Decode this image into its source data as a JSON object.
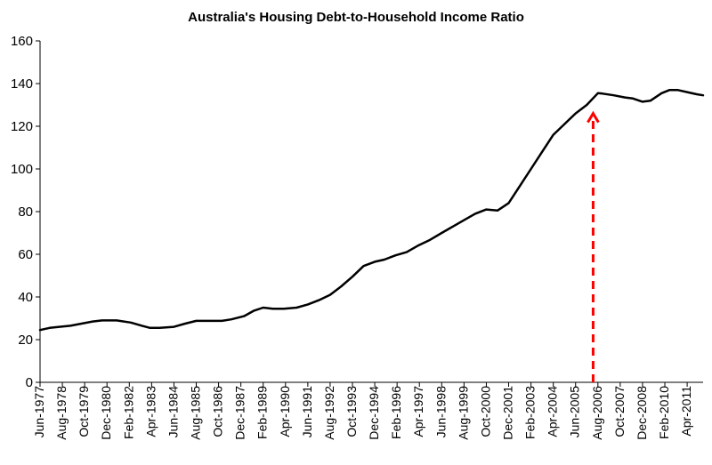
{
  "chart_data": {
    "type": "line",
    "title": "Australia's Housing Debt-to-Household Income Ratio",
    "xlabel": "",
    "ylabel": "",
    "ylim": [
      0,
      160
    ],
    "yticks": [
      0,
      20,
      40,
      60,
      80,
      100,
      120,
      140,
      160
    ],
    "xlim": [
      "1977-06",
      "2012-02"
    ],
    "xtick_labels": [
      "Jun-1977",
      "Aug-1978",
      "Oct-1979",
      "Dec-1980",
      "Feb-1982",
      "Apr-1983",
      "Jun-1984",
      "Aug-1985",
      "Oct-1986",
      "Dec-1987",
      "Feb-1989",
      "Apr-1990",
      "Jun-1991",
      "Aug-1992",
      "Oct-1993",
      "Dec-1994",
      "Feb-1996",
      "Apr-1997",
      "Jun-1998",
      "Aug-1999",
      "Oct-2000",
      "Dec-2001",
      "Feb-2003",
      "Apr-2004",
      "Jun-2005",
      "Aug-2006",
      "Oct-2007",
      "Dec-2008",
      "Feb-2010",
      "Apr-2011"
    ],
    "grid": false,
    "legend": "none",
    "line_color": "#000000",
    "series": [
      {
        "x": [
          "1977-06",
          "1977-12",
          "1978-06",
          "1979-01",
          "1979-08",
          "1980-03",
          "1980-09",
          "1981-06",
          "1982-03",
          "1982-10",
          "1983-03",
          "1983-09",
          "1984-06",
          "1985-01",
          "1985-08",
          "1986-03",
          "1986-12",
          "1987-06",
          "1988-02",
          "1988-08",
          "1989-02",
          "1989-08",
          "1990-03",
          "1990-11",
          "1991-06",
          "1992-01",
          "1992-08",
          "1993-03",
          "1993-10",
          "1994-05",
          "1994-12",
          "1995-06",
          "1996-01",
          "1996-08",
          "1997-03",
          "1997-10",
          "1998-06",
          "1999-01",
          "1999-08",
          "2000-03",
          "2000-10",
          "2001-05",
          "2001-12",
          "2002-07",
          "2003-02",
          "2003-09",
          "2004-04",
          "2004-11",
          "2005-06",
          "2006-01",
          "2006-08",
          "2006-11",
          "2007-06",
          "2008-01",
          "2008-06",
          "2008-12",
          "2009-05",
          "2009-12",
          "2010-05",
          "2010-10",
          "2011-04",
          "2011-10",
          "2012-02"
        ],
        "values": [
          24.5,
          25.5,
          26,
          26.5,
          27.5,
          28.5,
          29,
          29,
          28,
          26.5,
          25.5,
          25.5,
          26,
          27.5,
          28.8,
          28.8,
          28.8,
          29.5,
          31,
          33.5,
          35,
          34.5,
          34.5,
          35,
          36.5,
          38.5,
          41,
          45,
          49.5,
          54.5,
          56.5,
          57.5,
          59.5,
          61,
          64,
          66.5,
          70,
          73,
          76,
          79,
          81,
          80.5,
          84,
          92,
          100,
          108,
          116,
          121,
          126,
          130,
          135.5,
          135.3,
          134.5,
          133.5,
          133,
          131.5,
          132,
          135.5,
          137,
          137,
          136,
          135,
          134.5
        ]
      }
    ],
    "annotations": [
      {
        "type": "arrow",
        "style": "dashed",
        "color": "#ff0000",
        "x": "2006-05",
        "from_y": 0,
        "to_y": 126
      }
    ]
  }
}
